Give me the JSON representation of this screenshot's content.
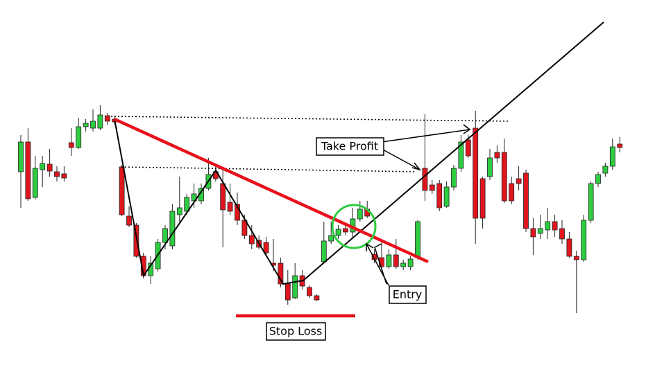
{
  "chart_data": {
    "type": "candlestick",
    "up_color": "#2ecc40",
    "down_color": "#e0161e",
    "ylim": [
      0,
      527
    ],
    "open": [
      279,
      322,
      242,
      282,
      290,
      279,
      276,
      321,
      314,
      344,
      342,
      342,
      360,
      355,
      286,
      215,
      202,
      157,
      129,
      139,
      177,
      172,
      217,
      222,
      237,
      237,
      255,
      279,
      262,
      235,
      232,
      209,
      187,
      180,
      177,
      147,
      147,
      117,
      97,
      129,
      112,
      100,
      149,
      179,
      187,
      197,
      192,
      211,
      225,
      160,
      155,
      142,
      159,
      142,
      142,
      155,
      284,
      260,
      262,
      229,
      257,
      284,
      325,
      342,
      269,
      272,
      307,
      307,
      262,
      269,
      277,
      197,
      190,
      195,
      207,
      197,
      182,
      157,
      152,
      209,
      262,
      277,
      287,
      319
    ],
    "high": [
      332,
      342,
      302,
      302,
      312,
      287,
      287,
      342,
      357,
      355,
      369,
      375,
      364,
      359,
      289,
      229,
      205,
      162,
      157,
      182,
      202,
      232,
      272,
      247,
      262,
      262,
      299,
      287,
      282,
      262,
      249,
      217,
      202,
      187,
      185,
      182,
      155,
      137,
      147,
      137,
      115,
      102,
      207,
      207,
      202,
      202,
      227,
      237,
      237,
      167,
      182,
      167,
      182,
      152,
      157,
      209,
      362,
      267,
      267,
      265,
      289,
      332,
      332,
      367,
      272,
      312,
      317,
      327,
      272,
      287,
      282,
      212,
      217,
      227,
      217,
      209,
      192,
      165,
      217,
      265,
      279,
      292,
      327,
      329
    ],
    "low": [
      227,
      237,
      239,
      257,
      272,
      265,
      265,
      302,
      312,
      337,
      337,
      339,
      347,
      347,
      215,
      199,
      155,
      125,
      117,
      135,
      167,
      167,
      207,
      217,
      227,
      232,
      252,
      265,
      170,
      217,
      202,
      182,
      167,
      167,
      157,
      135,
      112,
      87,
      95,
      109,
      97,
      92,
      147,
      175,
      182,
      187,
      185,
      207,
      212,
      147,
      137,
      139,
      139,
      137,
      137,
      152,
      237,
      247,
      222,
      227,
      252,
      279,
      299,
      175,
      197,
      267,
      292,
      234,
      232,
      252,
      192,
      159,
      182,
      182,
      185,
      175,
      155,
      75,
      149,
      205,
      257,
      272,
      282,
      307
    ],
    "close": [
      322,
      240,
      284,
      291,
      280,
      272,
      270,
      314,
      344,
      349,
      352,
      361,
      352,
      351,
      217,
      202,
      157,
      129,
      147,
      177,
      197,
      222,
      227,
      242,
      247,
      255,
      275,
      269,
      224,
      222,
      209,
      187,
      175,
      170,
      162,
      144,
      117,
      94,
      129,
      114,
      100,
      94,
      179,
      187,
      196,
      192,
      211,
      225,
      215,
      152,
      142,
      159,
      142,
      147,
      153,
      207,
      252,
      252,
      227,
      257,
      284,
      322,
      302,
      212,
      212,
      299,
      299,
      237,
      237,
      262,
      197,
      185,
      197,
      207,
      195,
      182,
      157,
      152,
      209,
      262,
      275,
      287,
      315,
      314
    ],
    "annotations": [
      "Take Profit",
      "Entry",
      "Stop Loss"
    ]
  }
}
